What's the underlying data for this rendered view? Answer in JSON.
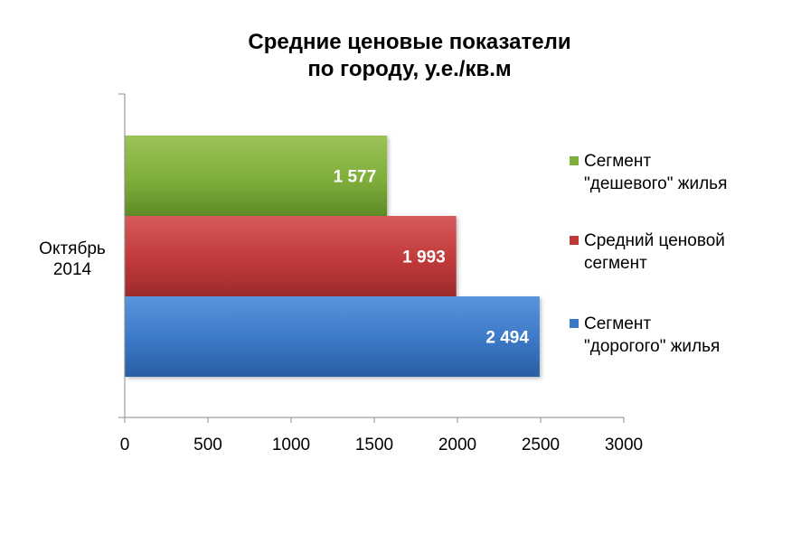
{
  "chart_data": {
    "type": "bar",
    "orientation": "horizontal",
    "title_lines": [
      "Средние ценовые показатели",
      "по городу, у.е./кв.м"
    ],
    "category_lines": [
      "Октябрь",
      "2014"
    ],
    "xlim": [
      0,
      3000
    ],
    "x_ticks": [
      "0",
      "500",
      "1000",
      "1500",
      "2000",
      "2500",
      "3000"
    ],
    "grid": false,
    "legend_position": "right",
    "series": [
      {
        "name_lines": [
          "Сегмент",
          "\"дешевого\" жилья"
        ],
        "value": 1577,
        "label": "1 577",
        "color": "#7fae3c",
        "color_dark": "#5f8a27",
        "color_light": "#9cc258"
      },
      {
        "name_lines": [
          "Средний ценовой",
          "сегмент"
        ],
        "value": 1993,
        "label": "1 993",
        "color": "#c0393a",
        "color_dark": "#9d2a2b",
        "color_light": "#d65a5a"
      },
      {
        "name_lines": [
          "Сегмент",
          "\"дорогого\" жилья"
        ],
        "value": 2494,
        "label": "2 494",
        "color": "#3a78c6",
        "color_dark": "#2a5ea3",
        "color_light": "#5a94dc"
      }
    ]
  }
}
